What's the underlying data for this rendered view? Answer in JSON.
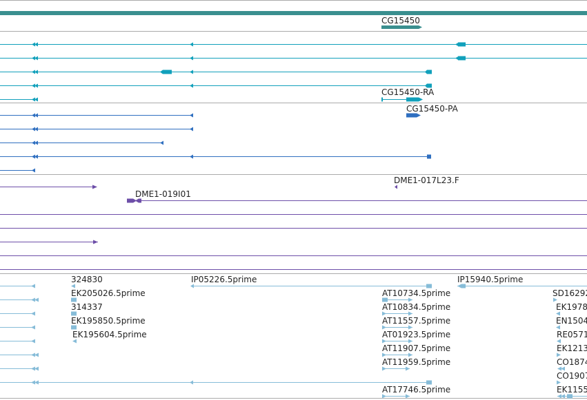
{
  "browser": {
    "colors": {
      "gene_dark": "#3a8f8f",
      "transcript": "#11a0bb",
      "protein": "#2f6fc0",
      "clone": "#6d4ea8",
      "est": "#86bcd8",
      "separator": "#aaaaaa"
    },
    "gene_track": {
      "features": [
        {
          "label": "CG15450"
        }
      ]
    },
    "transcript_track": {
      "features": [
        {
          "label": "CG15450-RA"
        }
      ]
    },
    "protein_track": {
      "features": [
        {
          "label": "CG15450-PA"
        }
      ]
    },
    "clone_track": {
      "features": [
        {
          "label": "DME1-017L23.F"
        },
        {
          "label": "DME1-019I01"
        }
      ]
    },
    "est_track": {
      "features": [
        {
          "label": "324830"
        },
        {
          "label": "EK205026.5prime"
        },
        {
          "label": "314337"
        },
        {
          "label": "EK195850.5prime"
        },
        {
          "label": "EK195604.5prime"
        },
        {
          "label": "IP05226.5prime"
        },
        {
          "label": "AT10734.5prime"
        },
        {
          "label": "AT10834.5prime"
        },
        {
          "label": "AT11557.5prime"
        },
        {
          "label": "AT01923.5prime"
        },
        {
          "label": "AT11907.5prime"
        },
        {
          "label": "AT11959.5prime"
        },
        {
          "label": "AT17746.5prime"
        },
        {
          "label": "IP15940.5prime"
        },
        {
          "label": "SD16292"
        },
        {
          "label": "EK1978"
        },
        {
          "label": "EN1504"
        },
        {
          "label": "RE0571"
        },
        {
          "label": "EK1213"
        },
        {
          "label": "CO1874"
        },
        {
          "label": "CO1907"
        },
        {
          "label": "EK1155"
        }
      ]
    }
  }
}
